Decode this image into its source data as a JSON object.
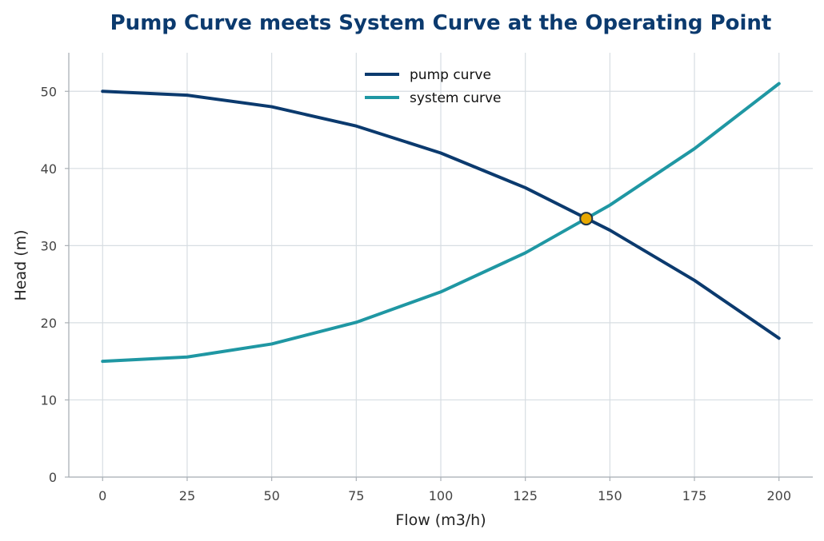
{
  "chart_data": {
    "type": "line",
    "title": "Pump Curve meets System Curve at the Operating Point",
    "xlabel": "Flow (m3/h)",
    "ylabel": "Head (m)",
    "xlim": [
      -10,
      210
    ],
    "ylim": [
      0,
      55
    ],
    "x_ticks": [
      0,
      25,
      50,
      75,
      100,
      125,
      150,
      175,
      200
    ],
    "y_ticks": [
      0,
      10,
      20,
      30,
      40,
      50
    ],
    "grid": true,
    "legend_position": "top-center",
    "series": [
      {
        "name": "pump curve",
        "color": "#0b3a6e",
        "x": [
          0,
          25,
          50,
          75,
          100,
          125,
          150,
          175,
          200
        ],
        "y": [
          50.0,
          49.5,
          48.0,
          45.5,
          42.0,
          37.5,
          32.0,
          25.5,
          18.0
        ]
      },
      {
        "name": "system curve",
        "color": "#1f97a3",
        "x": [
          0,
          25,
          50,
          75,
          100,
          125,
          150,
          175,
          200
        ],
        "y": [
          15.0,
          15.56,
          17.25,
          20.06,
          24.0,
          29.06,
          35.25,
          42.56,
          51.0
        ]
      }
    ],
    "operating_point": {
      "x": 143,
      "y": 33.5,
      "color": "#e8a800"
    }
  },
  "colors": {
    "title": "#0b3a6e",
    "grid": "#d7dde2",
    "axis": "#aab0b6"
  }
}
